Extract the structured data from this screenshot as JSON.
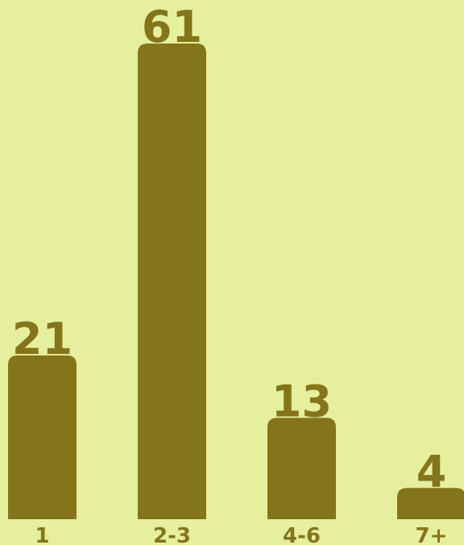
{
  "colors": {
    "background": "#e6ef9e",
    "bar": "#84751b",
    "text": "#84751b"
  },
  "chart_data": {
    "type": "bar",
    "title": "",
    "xlabel": "",
    "ylabel": "",
    "categories": [
      "1",
      "2-3",
      "4-6",
      "7+"
    ],
    "values": [
      21,
      61,
      13,
      4
    ],
    "value_labels": [
      "21",
      "61",
      "13",
      "4"
    ],
    "ylim": [
      0,
      61
    ],
    "grid": false,
    "legend": "none"
  }
}
